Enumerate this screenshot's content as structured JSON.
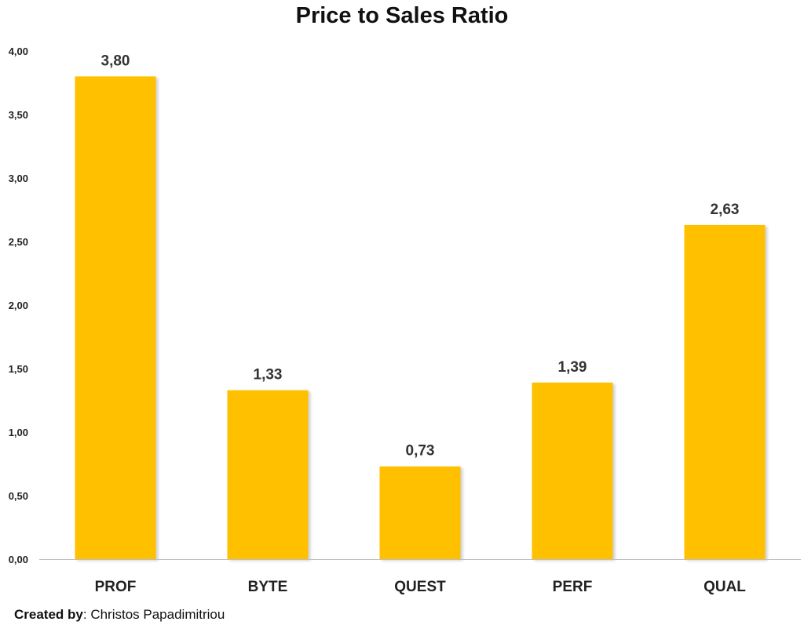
{
  "chart_data": {
    "type": "bar",
    "title": "Price to Sales Ratio",
    "categories": [
      "PROF",
      "BYTE",
      "QUEST",
      "PERF",
      "QUAL"
    ],
    "values": [
      3.8,
      1.33,
      0.73,
      1.39,
      2.63
    ],
    "value_labels": [
      "3,80",
      "1,33",
      "0,73",
      "1,39",
      "2,63"
    ],
    "yticks": [
      {
        "value": 0,
        "label": "0,00"
      },
      {
        "value": 0.5,
        "label": "0,50"
      },
      {
        "value": 1,
        "label": "1,00"
      },
      {
        "value": 1.5,
        "label": "1,50"
      },
      {
        "value": 2,
        "label": "2,00"
      },
      {
        "value": 2.5,
        "label": "2,50"
      },
      {
        "value": 3,
        "label": "3,00"
      },
      {
        "value": 3.5,
        "label": "3,50"
      },
      {
        "value": 4,
        "label": "4,00"
      }
    ],
    "ylim": [
      0,
      4
    ],
    "xlabel": "",
    "ylabel": "",
    "grid": false,
    "bar_color": "#FFC000",
    "axis_color": "#BFBFBF"
  },
  "footer": {
    "created_by_label": "Created by",
    "author": ": Christos Papadimitriou"
  }
}
